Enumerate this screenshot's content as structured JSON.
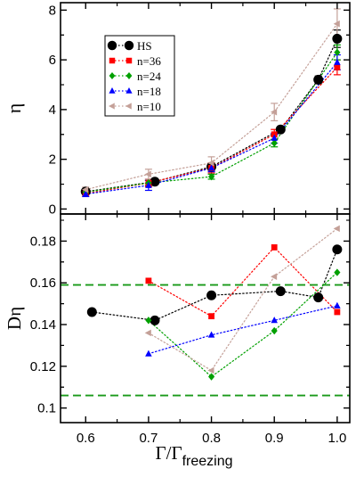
{
  "chart_data": [
    {
      "type": "scatter",
      "panel": "top",
      "xlabel": "",
      "ylabel": "η",
      "xlim": [
        0.56,
        1.02
      ],
      "ylim": [
        -0.2,
        8.3
      ],
      "yticks": [
        "0",
        "2",
        "4",
        "6",
        "8"
      ],
      "grid": false,
      "legend_position": "top-left",
      "series": [
        {
          "name": "HS",
          "color": "#000000",
          "marker": "circle",
          "x": [
            0.6,
            0.71,
            0.8,
            0.91,
            0.97,
            1.0
          ],
          "y": [
            0.7,
            1.1,
            1.7,
            3.2,
            5.2,
            6.85
          ],
          "err": [
            0.1,
            0.1,
            0.15,
            0.1,
            0.15,
            0.35
          ]
        },
        {
          "name": "n=36",
          "color": "#ff0000",
          "marker": "square",
          "x": [
            0.6,
            0.7,
            0.8,
            0.9,
            1.0
          ],
          "y": [
            0.62,
            1.05,
            1.65,
            3.0,
            5.7
          ],
          "err": [
            0.1,
            0.15,
            0.2,
            0.2,
            0.3
          ]
        },
        {
          "name": "n=24",
          "color": "#00a000",
          "marker": "diamond",
          "x": [
            0.6,
            0.7,
            0.8,
            0.9,
            1.0
          ],
          "y": [
            0.68,
            1.05,
            1.3,
            2.65,
            6.3
          ],
          "err": [
            0.1,
            0.1,
            0.1,
            0.15,
            0.3
          ]
        },
        {
          "name": "n=18",
          "color": "#0000ff",
          "marker": "triangle-up",
          "x": [
            0.6,
            0.7,
            0.8,
            0.9,
            1.0
          ],
          "y": [
            0.6,
            0.95,
            1.65,
            2.85,
            5.9
          ],
          "err": [
            0.1,
            0.2,
            0.15,
            0.2,
            0.3
          ]
        },
        {
          "name": "n=10",
          "color": "#c4a098",
          "marker": "triangle-left",
          "x": [
            0.6,
            0.7,
            0.8,
            0.9,
            1.0
          ],
          "y": [
            0.78,
            1.4,
            1.85,
            3.9,
            7.45
          ],
          "err": [
            0.1,
            0.2,
            0.25,
            0.35,
            0.6
          ]
        }
      ]
    },
    {
      "type": "scatter",
      "panel": "bottom",
      "xlabel": "Γ/Γfreezing",
      "xlabel_main": "Γ/Γ",
      "xlabel_sub": "freezing",
      "ylabel": "Dη",
      "xlim": [
        0.56,
        1.02
      ],
      "ylim": [
        0.093,
        0.193
      ],
      "xticks": [
        "0.6",
        "0.7",
        "0.8",
        "0.9",
        "1.0"
      ],
      "yticks": [
        "0.1",
        "0.12",
        "0.14",
        "0.16",
        "0.18"
      ],
      "reference_lines_y": [
        0.159,
        0.106
      ],
      "reference_line_color": "#1a9a1a",
      "grid": false,
      "series": [
        {
          "name": "HS",
          "color": "#000000",
          "marker": "circle",
          "x": [
            0.61,
            0.71,
            0.8,
            0.91,
            0.97,
            1.0
          ],
          "y": [
            0.146,
            0.142,
            0.154,
            0.156,
            0.153,
            0.176
          ]
        },
        {
          "name": "n=36",
          "color": "#ff0000",
          "marker": "square",
          "x": [
            0.7,
            0.8,
            0.9,
            1.0
          ],
          "y": [
            0.161,
            0.144,
            0.177,
            0.146
          ]
        },
        {
          "name": "n=24",
          "color": "#00a000",
          "marker": "diamond",
          "x": [
            0.7,
            0.8,
            0.9,
            1.0
          ],
          "y": [
            0.142,
            0.115,
            0.137,
            0.165
          ]
        },
        {
          "name": "n=18",
          "color": "#0000ff",
          "marker": "triangle-up",
          "x": [
            0.7,
            0.8,
            0.9,
            1.0
          ],
          "y": [
            0.126,
            0.135,
            0.142,
            0.149
          ]
        },
        {
          "name": "n=10",
          "color": "#c4a098",
          "marker": "triangle-left",
          "x": [
            0.7,
            0.8,
            0.9,
            1.0
          ],
          "y": [
            0.136,
            0.118,
            0.163,
            0.186
          ]
        }
      ]
    }
  ]
}
